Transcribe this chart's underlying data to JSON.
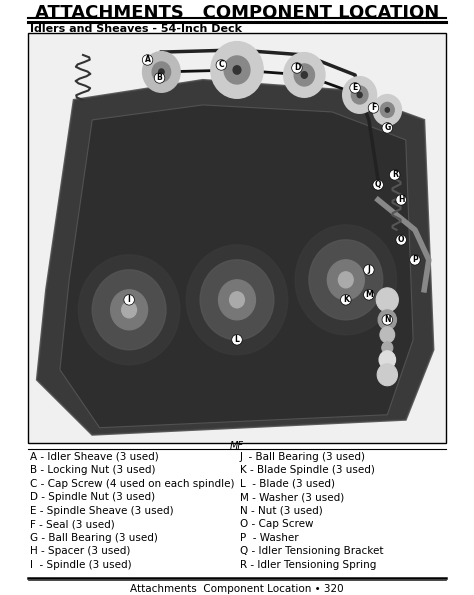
{
  "title": "ATTACHMENTS   COMPONENT LOCATION",
  "subtitle": "Idlers and Sheaves - 54-Inch Deck",
  "footer": "Attachments  Component Location • 320",
  "mf_label": "MF",
  "bg_color": "#ffffff",
  "title_color": "#000000",
  "border_color": "#000000",
  "left_items": [
    "A - Idler Sheave (3 used)",
    "B - Locking Nut (3 used)",
    "C - Cap Screw (4 used on each spindle)",
    "D - Spindle Nut (3 used)",
    "E - Spindle Sheave (3 used)",
    "F - Seal (3 used)",
    "G - Ball Bearing (3 used)",
    "H - Spacer (3 used)",
    "I  - Spindle (3 used)"
  ],
  "right_items": [
    "J  - Ball Bearing (3 used)",
    "K - Blade Spindle (3 used)",
    "L  - Blade (3 used)",
    "M - Washer (3 used)",
    "N - Nut (3 used)",
    "O - Cap Screw",
    "P  - Washer",
    "Q - Idler Tensioning Bracket",
    "R - Idler Tensioning Spring"
  ],
  "diagram_image_placeholder": true,
  "title_fontsize": 13,
  "subtitle_fontsize": 8,
  "legend_fontsize": 7.5,
  "footer_fontsize": 7.5
}
